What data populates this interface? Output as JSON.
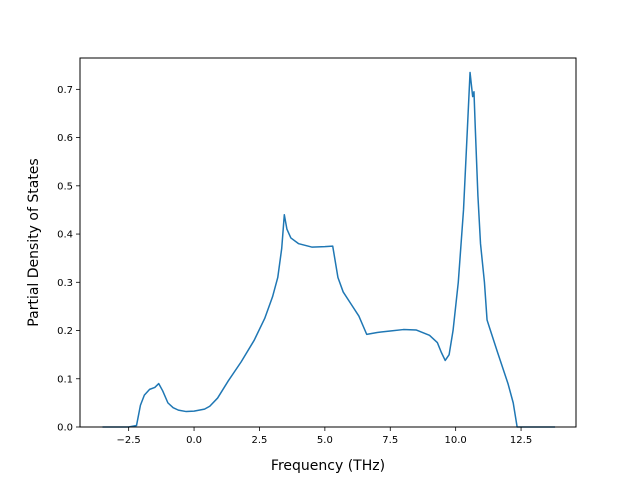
{
  "chart_data": {
    "type": "line",
    "title": "",
    "xlabel": "Frequency (THz)",
    "ylabel": "Partial Density of States",
    "xlim": [
      -4.36,
      14.6
    ],
    "ylim": [
      0,
      0.765
    ],
    "xticks": [
      -2.5,
      0.0,
      2.5,
      5.0,
      7.5,
      10.0,
      12.5
    ],
    "xtick_labels": [
      "−2.5",
      "0.0",
      "2.5",
      "5.0",
      "7.5",
      "10.0",
      "12.5"
    ],
    "yticks": [
      0.0,
      0.1,
      0.2,
      0.3,
      0.4,
      0.5,
      0.6,
      0.7
    ],
    "ytick_labels": [
      "0.0",
      "0.1",
      "0.2",
      "0.3",
      "0.4",
      "0.5",
      "0.6",
      "0.7"
    ],
    "grid": false,
    "legend": "none",
    "colors": {
      "series": "#1f77b4",
      "axes": "#000000"
    },
    "series": [
      {
        "name": "",
        "x": [
          -3.5,
          -2.5,
          -2.2,
          -2.05,
          -1.9,
          -1.7,
          -1.5,
          -1.35,
          -1.2,
          -1.0,
          -0.8,
          -0.6,
          -0.3,
          0.0,
          0.4,
          0.6,
          0.9,
          1.3,
          1.8,
          2.3,
          2.7,
          3.0,
          3.2,
          3.35,
          3.45,
          3.55,
          3.7,
          4.0,
          4.5,
          5.0,
          5.3,
          5.5,
          5.7,
          6.0,
          6.3,
          6.6,
          7.0,
          7.5,
          8.0,
          8.5,
          9.0,
          9.3,
          9.45,
          9.6,
          9.75,
          9.9,
          10.1,
          10.3,
          10.45,
          10.55,
          10.6,
          10.65,
          10.7,
          10.75,
          10.85,
          10.95,
          11.1,
          11.2,
          11.3,
          11.6,
          12.0,
          12.2,
          12.35,
          12.45,
          12.6,
          13.8
        ],
        "values": [
          0.0,
          0.0,
          0.003,
          0.045,
          0.066,
          0.078,
          0.082,
          0.09,
          0.075,
          0.05,
          0.04,
          0.035,
          0.032,
          0.033,
          0.037,
          0.043,
          0.06,
          0.095,
          0.135,
          0.18,
          0.225,
          0.27,
          0.31,
          0.37,
          0.44,
          0.41,
          0.392,
          0.38,
          0.373,
          0.374,
          0.375,
          0.31,
          0.28,
          0.255,
          0.23,
          0.192,
          0.196,
          0.199,
          0.202,
          0.201,
          0.19,
          0.175,
          0.155,
          0.138,
          0.15,
          0.2,
          0.3,
          0.45,
          0.62,
          0.735,
          0.71,
          0.685,
          0.695,
          0.62,
          0.48,
          0.38,
          0.3,
          0.222,
          0.205,
          0.155,
          0.09,
          0.05,
          0.0,
          0.0,
          0.0,
          0.0
        ]
      }
    ]
  }
}
